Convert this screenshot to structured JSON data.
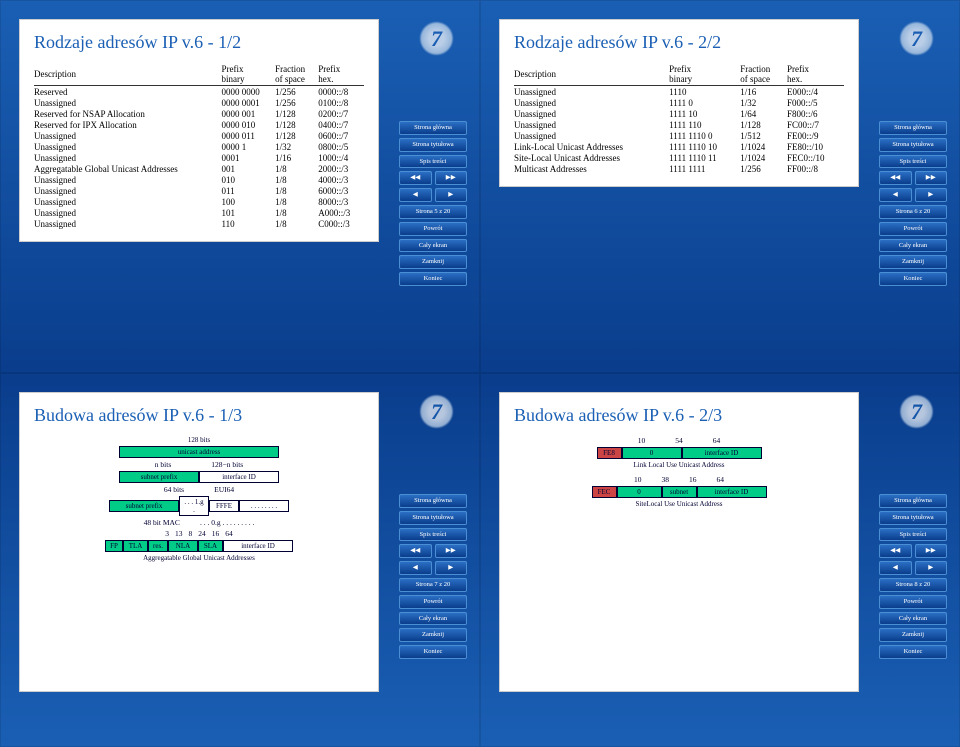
{
  "slides": [
    {
      "title": "Rodzaje adresów IP v.6 - 1/2",
      "headers": [
        "Description",
        "Prefix binary",
        "Fraction of space",
        "Prefix hex."
      ],
      "rows": [
        [
          "Reserved",
          "0000 0000",
          "1/256",
          "0000::/8"
        ],
        [
          "Unassigned",
          "0000 0001",
          "1/256",
          "0100::/8"
        ],
        [
          "Reserved for NSAP Allocation",
          "0000 001",
          "1/128",
          "0200::/7"
        ],
        [
          "Reserved for IPX Allocation",
          "0000 010",
          "1/128",
          "0400::/7"
        ],
        [
          "Unassigned",
          "0000 011",
          "1/128",
          "0600::/7"
        ],
        [
          "Unassigned",
          "0000 1",
          "1/32",
          "0800::/5"
        ],
        [
          "Unassigned",
          "0001",
          "1/16",
          "1000::/4"
        ],
        [
          "Aggregatable Global Unicast Addresses",
          "001",
          "1/8",
          "2000::/3"
        ],
        [
          "Unassigned",
          "010",
          "1/8",
          "4000::/3"
        ],
        [
          "Unassigned",
          "011",
          "1/8",
          "6000::/3"
        ],
        [
          "Unassigned",
          "100",
          "1/8",
          "8000::/3"
        ],
        [
          "Unassigned",
          "101",
          "1/8",
          "A000::/3"
        ],
        [
          "Unassigned",
          "110",
          "1/8",
          "C000::/3"
        ]
      ],
      "page": "Strona 5 z 20"
    },
    {
      "title": "Rodzaje adresów IP v.6 - 2/2",
      "headers": [
        "Description",
        "Prefix binary",
        "Fraction of space",
        "Prefix hex."
      ],
      "rows": [
        [
          "Unassigned",
          "1110",
          "1/16",
          "E000::/4"
        ],
        [
          "Unassigned",
          "1111 0",
          "1/32",
          "F000::/5"
        ],
        [
          "Unassigned",
          "1111 10",
          "1/64",
          "F800::/6"
        ],
        [
          "Unassigned",
          "1111 110",
          "1/128",
          "FC00::/7"
        ],
        [
          "Unassigned",
          "1111 1110 0",
          "1/512",
          "FE00::/9"
        ],
        [
          "Link-Local Unicast Addresses",
          "1111 1110 10",
          "1/1024",
          "FE80::/10"
        ],
        [
          "Site-Local Unicast Addresses",
          "1111 1110 11",
          "1/1024",
          "FEC0::/10"
        ],
        [
          "Multicast Addresses",
          "1111 1111",
          "1/256",
          "FF00::/8"
        ]
      ],
      "page": "Strona 6 z 20"
    },
    {
      "title": "Budowa adresów IP v.6 - 1/3",
      "diagram": {
        "top_label": "128 bits",
        "top_box": "unicast address",
        "mid_labels": [
          "n bits",
          "128−n bits"
        ],
        "mid_boxes": [
          "subnet prefix",
          "interface ID"
        ],
        "low_labels": [
          "64 bits",
          "EUI64"
        ],
        "low_boxes": [
          "subnet prefix",
          ". . . 1.g .",
          "FFFE",
          ". . . . . . . ."
        ],
        "mac_label": "48 bit MAC",
        "mac_sub": ". . . 0.g . . . . . . . . .",
        "bottom_nums": [
          "3",
          "13",
          "8",
          "24",
          "16",
          "64"
        ],
        "bottom_boxes": [
          "FP",
          "TLA",
          "res.",
          "NLA",
          "SLA",
          "interface ID"
        ],
        "caption": "Aggregatable Global Unicast Addresses"
      },
      "page": "Strona 7 z 20"
    },
    {
      "title": "Budowa adresów IP v.6 - 2/3",
      "diagram2": {
        "r1_nums": [
          "10",
          "54",
          "64"
        ],
        "r1_boxes": [
          "FE8",
          "0",
          "interface ID"
        ],
        "r1_caption": "Link Local Use Unicast Address",
        "r2_nums": [
          "10",
          "38",
          "16",
          "64"
        ],
        "r2_boxes": [
          "FEC",
          "0",
          "subnet",
          "interface ID"
        ],
        "r2_caption": "SiteLocal Use Unicast Address"
      },
      "page": "Strona 8 z 20"
    }
  ],
  "nav": {
    "home": "Strona główna",
    "title_page": "Strona tytułowa",
    "toc": "Spis treści",
    "ff_back": "◀◀",
    "ff_fwd": "▶▶",
    "back": "◀",
    "fwd": "▶",
    "return": "Powrót",
    "fullscreen": "Cały ekran",
    "close": "Zamknij",
    "end": "Koniec"
  },
  "colors": {
    "title": "#1a5fb4",
    "box_fill": "#00cc88",
    "box_border": "#003366",
    "nav_grad_top": "#2a6fc4",
    "nav_grad_bot": "#0a3d8c"
  }
}
